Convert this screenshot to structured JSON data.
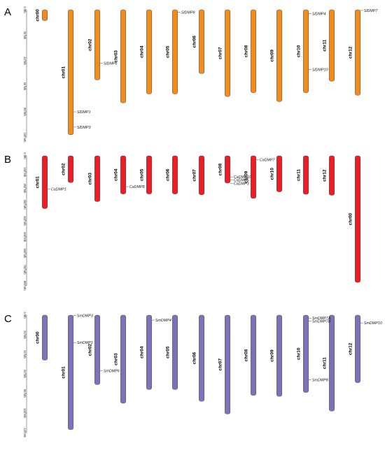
{
  "panels": [
    {
      "letter": "A",
      "color": "#F28A1E",
      "ticks": [
        "0 Mb",
        "20 Mb",
        "40 Mb",
        "60 Mb",
        "80 Mb",
        "100 Mb"
      ],
      "chromosomes": [
        {
          "name": "chr00",
          "length": 8.5
        },
        {
          "name": "chr01",
          "length": 98
        },
        {
          "name": "chr02",
          "length": 55
        },
        {
          "name": "chr03",
          "length": 73
        },
        {
          "name": "chr04",
          "length": 66
        },
        {
          "name": "chr05",
          "length": 66
        },
        {
          "name": "chr06",
          "length": 50
        },
        {
          "name": "chr07",
          "length": 68
        },
        {
          "name": "chr08",
          "length": 65
        },
        {
          "name": "chr09",
          "length": 72
        },
        {
          "name": "chr10",
          "length": 65
        },
        {
          "name": "chr11",
          "length": 56
        },
        {
          "name": "chr12",
          "length": 67
        }
      ],
      "genes": [
        {
          "name": "SlDMP1",
          "chr": "chr01",
          "pos": 80
        },
        {
          "name": "SlDMP3",
          "chr": "chr01",
          "pos": 92
        },
        {
          "name": "SlDMP6",
          "chr": "chr02",
          "pos": 42
        },
        {
          "name": "SlDMP8",
          "chr": "chr05",
          "pos": 2
        },
        {
          "name": "SlDMP4",
          "chr": "chr10",
          "pos": 3
        },
        {
          "name": "SlDMP10",
          "chr": "chr10",
          "pos": 47
        },
        {
          "name": "SlDMP7",
          "chr": "chr12",
          "pos": 0.5
        }
      ]
    },
    {
      "letter": "B",
      "color": "#EE1C25",
      "ticks": [
        "0 Mb",
        "100 Mb",
        "200 Mb",
        "300 Mb",
        "400 Mb",
        "500 Mb",
        "600 Mb",
        "700 Mb",
        "800 Mb"
      ],
      "chromosomes": [
        {
          "name": "chr01",
          "length": 325
        },
        {
          "name": "chr02",
          "length": 165
        },
        {
          "name": "chr03",
          "length": 282
        },
        {
          "name": "chr04",
          "length": 235
        },
        {
          "name": "chr05",
          "length": 235
        },
        {
          "name": "chr06",
          "length": 235
        },
        {
          "name": "chr07",
          "length": 240
        },
        {
          "name": "chr08",
          "length": 168
        },
        {
          "name": "chr09",
          "length": 262
        },
        {
          "name": "chr10",
          "length": 222
        },
        {
          "name": "chr11",
          "length": 237
        },
        {
          "name": "chr12",
          "length": 243
        },
        {
          "name": "chr00",
          "length": 780
        }
      ],
      "genes": [
        {
          "name": "CaDMP1",
          "chr": "chr01",
          "pos": 205
        },
        {
          "name": "CaDMP8",
          "chr": "chr04",
          "pos": 190
        },
        {
          "name": "CaDMP7",
          "chr": "chr09",
          "pos": 25
        },
        {
          "name": "CaDMP10",
          "chr": "chr08",
          "pos": 130
        },
        {
          "name": "CaDMP5",
          "chr": "chr08",
          "pos": 150
        },
        {
          "name": "CaDMP3",
          "chr": "chr08",
          "pos": 170
        }
      ]
    },
    {
      "letter": "C",
      "color": "#7B72B8",
      "ticks": [
        "0 Mb",
        "20 Mb",
        "40 Mb",
        "60 Mb",
        "80 Mb",
        "100 Mb",
        "120 Mb"
      ],
      "chromosomes": [
        {
          "name": "chr00",
          "length": 46
        },
        {
          "name": "chr01",
          "length": 117
        },
        {
          "name": "chr02",
          "length": 71
        },
        {
          "name": "chr03",
          "length": 90
        },
        {
          "name": "chr04",
          "length": 76
        },
        {
          "name": "chr05",
          "length": 76
        },
        {
          "name": "chr06",
          "length": 88
        },
        {
          "name": "chr07",
          "length": 101
        },
        {
          "name": "chr08",
          "length": 82
        },
        {
          "name": "chr09",
          "length": 83
        },
        {
          "name": "chr10",
          "length": 79
        },
        {
          "name": "chr11",
          "length": 98
        },
        {
          "name": "chr12",
          "length": 69
        }
      ],
      "genes": [
        {
          "name": "SmDMP3",
          "chr": "chr01",
          "pos": 0.5
        },
        {
          "name": "SmDMP1",
          "chr": "chr01",
          "pos": 28
        },
        {
          "name": "SmDMP6",
          "chr": "chr02",
          "pos": 57
        },
        {
          "name": "SmDMP4",
          "chr": "chr04",
          "pos": 5
        },
        {
          "name": "SmDMP7A",
          "chr": "chr10",
          "pos": 3
        },
        {
          "name": "SmDMP7B",
          "chr": "chr10",
          "pos": 6
        },
        {
          "name": "SmDMP8",
          "chr": "chr10",
          "pos": 66
        },
        {
          "name": "SmDMP10",
          "chr": "chr12",
          "pos": 8
        }
      ]
    }
  ]
}
